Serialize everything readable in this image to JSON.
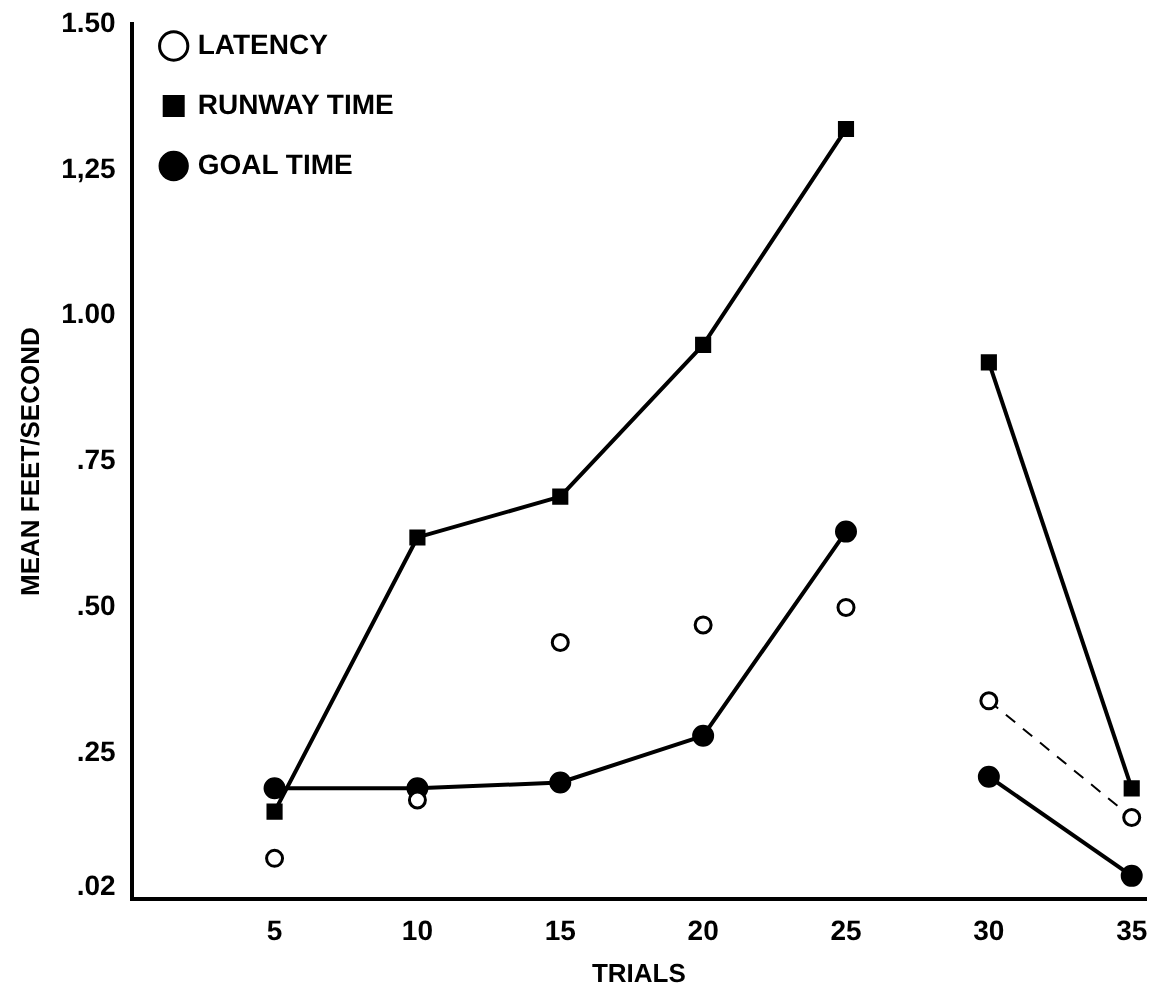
{
  "chart_data": {
    "type": "line",
    "xlabel": "TRIALS",
    "ylabel": "MEAN FEET/SECOND",
    "xlim": [
      0,
      35.5
    ],
    "xticks": [
      5,
      10,
      15,
      20,
      25,
      30,
      35
    ],
    "ylim": [
      0,
      1.5
    ],
    "yticks": [
      {
        "value": 0.02,
        "label": ".02"
      },
      {
        "value": 0.25,
        "label": ".25"
      },
      {
        "value": 0.5,
        "label": ".50"
      },
      {
        "value": 0.75,
        "label": ".75"
      },
      {
        "value": 1,
        "label": "1.00"
      },
      {
        "value": 1.25,
        "label": "1,25"
      },
      {
        "value": 1.5,
        "label": "1.50"
      }
    ],
    "grid": false,
    "legend": "top left",
    "series": [
      {
        "name": "LATENCY",
        "type": "scatter",
        "marker": "circle",
        "color": "#000000",
        "x": [
          5,
          10,
          15,
          20,
          25
        ],
        "values": [
          0.07,
          0.17,
          0.44,
          0.47,
          0.5
        ]
      },
      {
        "name": "RUNWAY TIME",
        "type": "line",
        "marker": "square",
        "line_style": "solid",
        "color": "#000000",
        "x": [
          5,
          10,
          15,
          20,
          25
        ],
        "values": [
          0.15,
          0.62,
          0.69,
          0.95,
          1.32
        ]
      },
      {
        "name": "GOAL TIME",
        "type": "line",
        "marker": "circle",
        "line_style": "solid",
        "color": "#000000",
        "x": [
          5,
          10,
          15,
          20,
          25
        ],
        "values": [
          0.19,
          0.19,
          0.2,
          0.28,
          0.63
        ]
      },
      {
        "type": "line",
        "marker": "circle",
        "line_style": "dashed",
        "color": "#000000",
        "x": [
          30,
          35
        ],
        "values": [
          0.34,
          0.14
        ]
      },
      {
        "type": "line",
        "marker": "square",
        "line_style": "solid",
        "color": "#000000",
        "x": [
          30,
          35
        ],
        "values": [
          0.92,
          0.19
        ]
      },
      {
        "type": "line",
        "marker": "circle",
        "line_style": "solid",
        "color": "#000000",
        "x": [
          30,
          35
        ],
        "values": [
          0.21,
          0.04
        ]
      }
    ]
  }
}
